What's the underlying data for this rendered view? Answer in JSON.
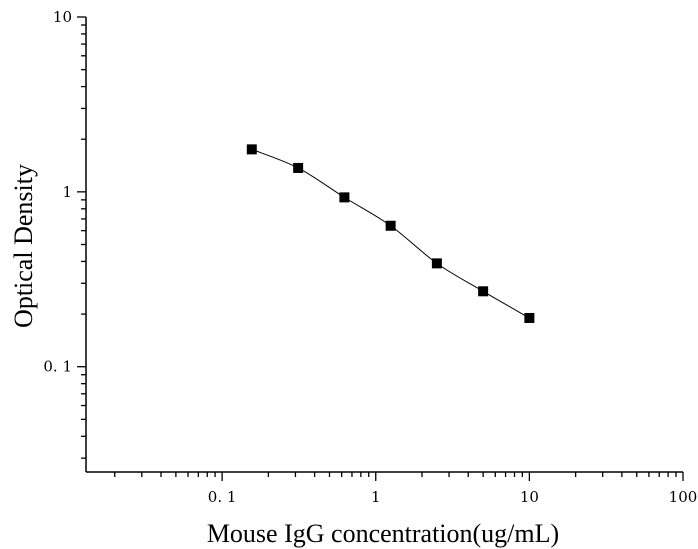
{
  "chart_data": {
    "type": "scatter",
    "title": "",
    "xlabel": "Mouse IgG concentration(ug/mL)",
    "ylabel": "Optical Density",
    "xscale": "log",
    "yscale": "log",
    "xlim": [
      0.013,
      100
    ],
    "ylim": [
      0.025,
      10
    ],
    "grid": false,
    "x_tick_labels": [
      {
        "value": 0.1,
        "label": "0. 1"
      },
      {
        "value": 1,
        "label": "1"
      },
      {
        "value": 10,
        "label": "10"
      },
      {
        "value": 100,
        "label": "100"
      }
    ],
    "y_tick_labels": [
      {
        "value": 0.1,
        "label": "0. 1"
      },
      {
        "value": 1,
        "label": "1"
      },
      {
        "value": 10,
        "label": "10"
      }
    ],
    "series": [
      {
        "x": [
          0.156,
          0.3125,
          0.625,
          1.25,
          2.5,
          5,
          10
        ],
        "y": [
          1.75,
          1.37,
          0.93,
          0.64,
          0.39,
          0.27,
          0.19
        ],
        "marker": "square",
        "fit_line": true
      }
    ],
    "colors": {
      "marker": "#000000",
      "line": "#000000",
      "axis": "#000000"
    }
  }
}
